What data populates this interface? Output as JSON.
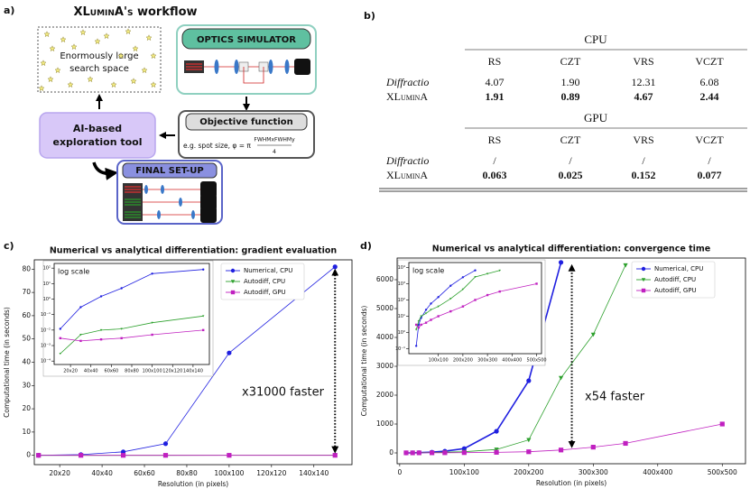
{
  "diagram": {
    "panel_label": "a)",
    "title": [
      "XLuminA's",
      "workflow"
    ],
    "search_space": [
      "Enormously large",
      "search space"
    ],
    "simulator": "OPTICS SIMULATOR",
    "objective": {
      "title": "Objective function",
      "formula_prefix": "e.g. spot size, φ = π",
      "numerator": "FWHMxFWHMy",
      "denominator": "4"
    },
    "explorer": [
      "AI-based",
      "exploration tool"
    ],
    "final": "FINAL SET-UP"
  },
  "table": {
    "panel_label": "b)",
    "sections": [
      {
        "name": "CPU",
        "columns": [
          "RS",
          "CZT",
          "VRS",
          "VCZT"
        ],
        "rows": [
          {
            "label": "Diffractio",
            "cells": [
              "4.07",
              "1.90",
              "12.31",
              "6.08"
            ]
          },
          {
            "label": "XLuminA",
            "cells": [
              "1.91",
              "0.89",
              "4.67",
              "2.44"
            ]
          }
        ]
      },
      {
        "name": "GPU",
        "columns": [
          "RS",
          "CZT",
          "VRS",
          "VCZT"
        ],
        "rows": [
          {
            "label": "Diffractio",
            "cells": [
              "/",
              "/",
              "/",
              "/"
            ]
          },
          {
            "label": "XLuminA",
            "cells": [
              "0.063",
              "0.025",
              "0.152",
              "0.077"
            ]
          }
        ]
      }
    ]
  },
  "chart_data": [
    {
      "type": "line",
      "panel_label": "c)",
      "title": "Numerical vs analytical differentiation: gradient evaluation",
      "xlabel": "Resolution (in pixels)",
      "ylabel": "Computational time (in seconds)",
      "xlim": [
        8,
        158
      ],
      "xticks": [
        {
          "value": 20,
          "label": "20x20"
        },
        {
          "value": 40,
          "label": "40x40"
        },
        {
          "value": 60,
          "label": "60x60"
        },
        {
          "value": 80,
          "label": "80x80"
        },
        {
          "value": 100,
          "label": "100x100"
        },
        {
          "value": 120,
          "label": "120x120"
        },
        {
          "value": 140,
          "label": "140x140"
        }
      ],
      "ylim": [
        -4,
        84
      ],
      "yticks": [
        0,
        10,
        20,
        30,
        40,
        50,
        60,
        70,
        80
      ],
      "legend": "upper right",
      "annotation": "x31000 faster",
      "series": [
        {
          "name": "Numerical, CPU",
          "color": "#1f1fe0",
          "marker": "circle",
          "x": [
            10,
            30,
            50,
            70,
            100,
            150
          ],
          "values": [
            0.012,
            0.3,
            1.5,
            5,
            44,
            81
          ]
        },
        {
          "name": "Autodiff, CPU",
          "color": "#2ca02c",
          "marker": "triangle",
          "x": [
            10,
            30,
            50,
            70,
            100,
            150
          ],
          "values": [
            0.0003,
            0.005,
            0.01,
            0.012,
            0.03,
            0.08
          ]
        },
        {
          "name": "Autodiff, GPU",
          "color": "#c020c0",
          "marker": "square",
          "x": [
            10,
            30,
            50,
            70,
            100,
            150
          ],
          "values": [
            0.003,
            0.002,
            0.0025,
            0.003,
            0.005,
            0.01
          ]
        }
      ],
      "inset": {
        "label": "log scale",
        "log_scale": true,
        "xlim": [
          4,
          156
        ],
        "xticks": [
          {
            "value": 20,
            "label": "20x20"
          },
          {
            "value": 40,
            "label": "40x40"
          },
          {
            "value": 60,
            "label": "60x60"
          },
          {
            "value": 80,
            "label": "80x80"
          },
          {
            "value": 100,
            "label": "100x100"
          },
          {
            "value": 120,
            "label": "120x120"
          },
          {
            "value": 140,
            "label": "140x140"
          }
        ],
        "ylim": [
          6e-05,
          200
        ],
        "yticks": [
          {
            "value": 0.0001,
            "label": "10⁻⁴"
          },
          {
            "value": 0.001,
            "label": "10⁻³"
          },
          {
            "value": 0.01,
            "label": "10⁻²"
          },
          {
            "value": 0.1,
            "label": "10⁻¹"
          },
          {
            "value": 1,
            "label": "10⁰"
          },
          {
            "value": 10,
            "label": "10¹"
          },
          {
            "value": 100,
            "label": "10²"
          }
        ]
      }
    },
    {
      "type": "line",
      "panel_label": "d)",
      "title": "Numerical vs analytical differentiation: convergence time",
      "xlabel": "Resolution (in pixels)",
      "ylabel": "Computational time (in seconds)",
      "xlim": [
        -4,
        536
      ],
      "xticks": [
        0,
        {
          "value": 100,
          "label": "100x100"
        },
        {
          "value": 200,
          "label": "200x200"
        },
        {
          "value": 300,
          "label": "300x300"
        },
        {
          "value": 400,
          "label": "400x400"
        },
        {
          "value": 500,
          "label": "500x500"
        }
      ],
      "ylim": [
        -375,
        6750
      ],
      "yticks": [
        0,
        1000,
        2000,
        3000,
        4000,
        5000,
        6000
      ],
      "legend": "upper right",
      "annotation": "x54 faster",
      "series": [
        {
          "name": "Numerical, CPU",
          "color": "#1f1fe0",
          "marker": "circle",
          "x": [
            10,
            20,
            30,
            50,
            70,
            100,
            150,
            200,
            250
          ],
          "values": [
            0.15,
            3,
            8,
            25,
            60,
            150,
            750,
            2500,
            6600
          ]
        },
        {
          "name": "Autodiff, CPU",
          "color": "#2ca02c",
          "marker": "triangle",
          "x": [
            10,
            20,
            30,
            50,
            70,
            100,
            150,
            200,
            250,
            300,
            350
          ],
          "values": [
            1.5,
            5,
            10,
            15,
            25,
            40,
            120,
            450,
            2600,
            4100,
            6500
          ]
        },
        {
          "name": "Autodiff, GPU",
          "color": "#c020c0",
          "marker": "square",
          "x": [
            10,
            20,
            30,
            50,
            70,
            100,
            150,
            200,
            250,
            300,
            350,
            500
          ],
          "values": [
            3,
            2,
            3,
            4,
            6,
            10,
            20,
            40,
            100,
            200,
            330,
            1000
          ]
        }
      ],
      "inset": {
        "label": "log scale",
        "log_scale": true,
        "xlim": [
          -20,
          520
        ],
        "xticks": [
          {
            "value": 100,
            "label": "100x100"
          },
          {
            "value": 200,
            "label": "200x200"
          },
          {
            "value": 300,
            "label": "300x300"
          },
          {
            "value": 400,
            "label": "400x400"
          },
          {
            "value": 500,
            "label": "500x500"
          }
        ],
        "ylim": [
          0.05,
          20000
        ],
        "yticks": [
          {
            "value": 0.1,
            "label": "10⁻¹"
          },
          {
            "value": 1,
            "label": "10⁰"
          },
          {
            "value": 10,
            "label": "10¹"
          },
          {
            "value": 100,
            "label": "10²"
          },
          {
            "value": 1000,
            "label": "10³"
          },
          {
            "value": 10000,
            "label": "10⁴"
          }
        ]
      }
    }
  ]
}
